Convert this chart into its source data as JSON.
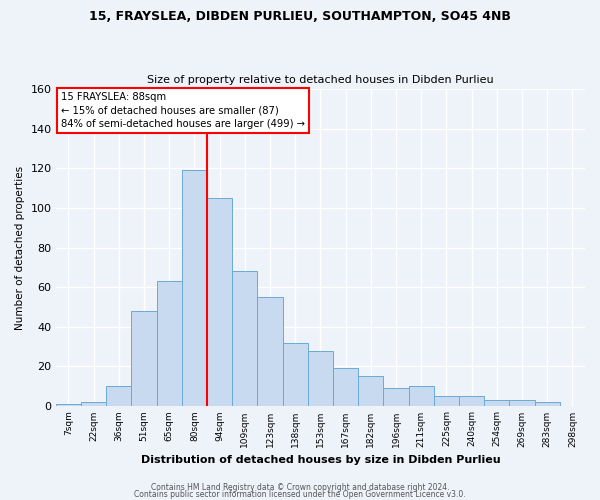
{
  "title1": "15, FRAYSLEA, DIBDEN PURLIEU, SOUTHAMPTON, SO45 4NB",
  "title2": "Size of property relative to detached houses in Dibden Purlieu",
  "xlabel": "Distribution of detached houses by size in Dibden Purlieu",
  "ylabel": "Number of detached properties",
  "bar_labels": [
    "7sqm",
    "22sqm",
    "36sqm",
    "51sqm",
    "65sqm",
    "80sqm",
    "94sqm",
    "109sqm",
    "123sqm",
    "138sqm",
    "153sqm",
    "167sqm",
    "182sqm",
    "196sqm",
    "211sqm",
    "225sqm",
    "240sqm",
    "254sqm",
    "269sqm",
    "283sqm",
    "298sqm"
  ],
  "bar_values": [
    1,
    2,
    10,
    48,
    63,
    119,
    105,
    68,
    55,
    32,
    28,
    19,
    15,
    9,
    10,
    5,
    5,
    3,
    3,
    2,
    0
  ],
  "bar_color": "#c8daef",
  "bar_edge_color": "#6aaad4",
  "vline_idx": 6,
  "vline_color": "red",
  "annotation_title": "15 FRAYSLEA: 88sqm",
  "annotation_line1": "← 15% of detached houses are smaller (87)",
  "annotation_line2": "84% of semi-detached houses are larger (499) →",
  "annotation_box_color": "white",
  "annotation_box_edge": "red",
  "ylim": [
    0,
    160
  ],
  "yticks": [
    0,
    20,
    40,
    60,
    80,
    100,
    120,
    140,
    160
  ],
  "footer1": "Contains HM Land Registry data © Crown copyright and database right 2024.",
  "footer2": "Contains public sector information licensed under the Open Government Licence v3.0.",
  "bg_color": "#eef2f9"
}
